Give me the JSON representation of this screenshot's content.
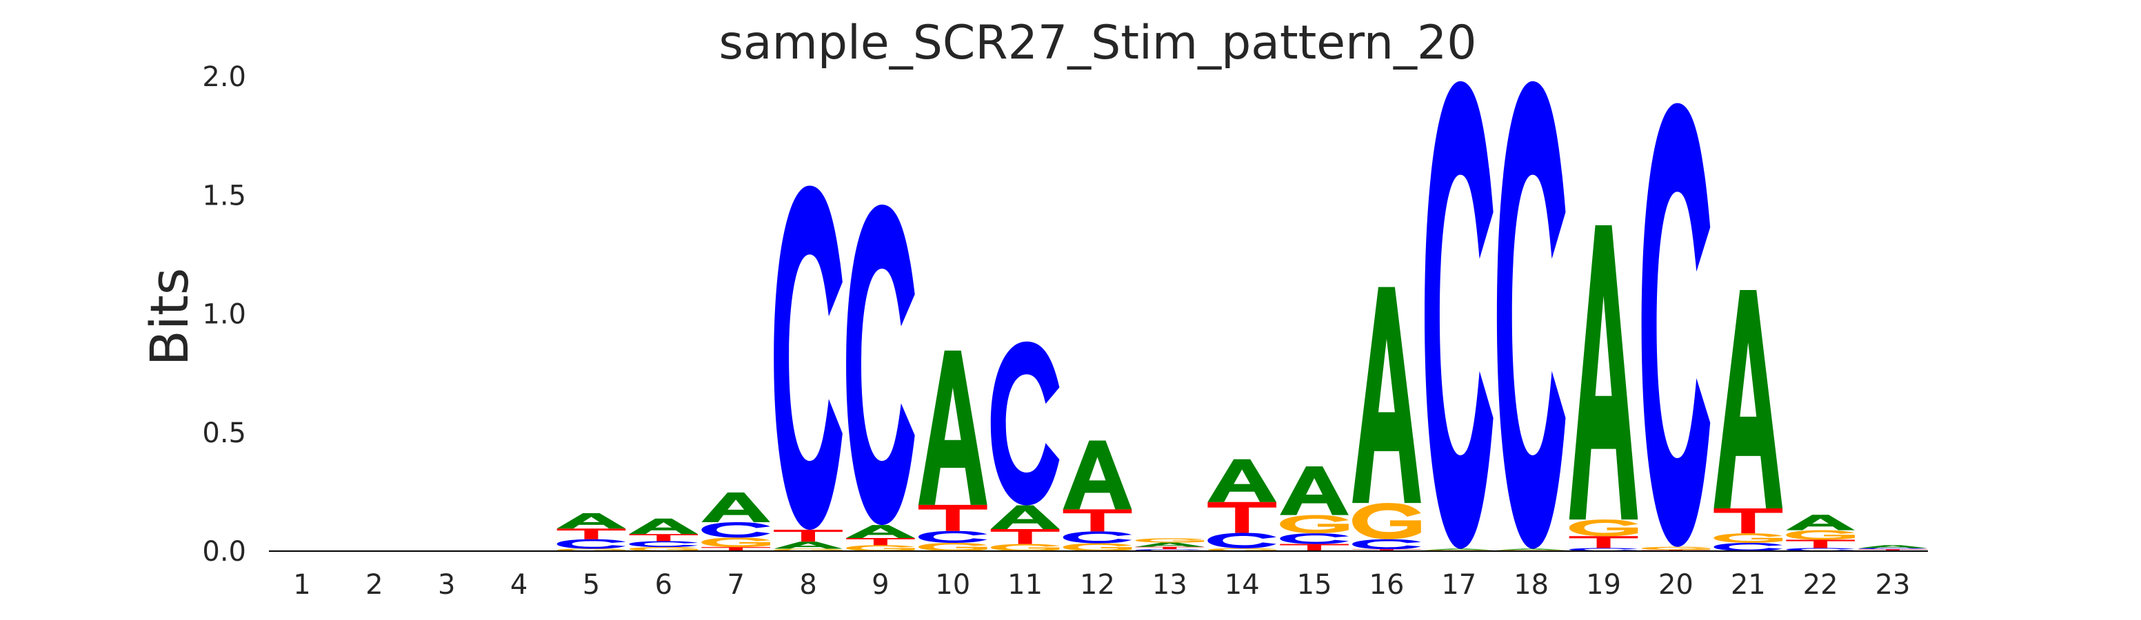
{
  "chart_data": {
    "type": "sequence-logo",
    "title": "sample_SCR27_Stim_pattern_20",
    "xlabel": "",
    "ylabel": "Bits",
    "ylim": [
      0,
      2.0
    ],
    "yticks": [
      "0.0",
      "0.5",
      "1.0",
      "1.5",
      "2.0"
    ],
    "ytick_values": [
      0,
      0.5,
      1.0,
      1.5,
      2.0
    ],
    "grid": false,
    "colors": {
      "A": "#008000",
      "C": "#0000ff",
      "G": "#ffa500",
      "T": "#ff0000"
    },
    "positions": [
      {
        "label": "1",
        "stack": []
      },
      {
        "label": "2",
        "stack": []
      },
      {
        "label": "3",
        "stack": []
      },
      {
        "label": "4",
        "stack": []
      },
      {
        "label": "5",
        "stack": [
          [
            "G",
            0.01
          ],
          [
            "C",
            0.04
          ],
          [
            "T",
            0.045
          ],
          [
            "A",
            0.065
          ]
        ]
      },
      {
        "label": "6",
        "stack": [
          [
            "G",
            0.017
          ],
          [
            "C",
            0.025
          ],
          [
            "T",
            0.03
          ],
          [
            "A",
            0.065
          ]
        ]
      },
      {
        "label": "7",
        "stack": [
          [
            "T",
            0.017
          ],
          [
            "G",
            0.04
          ],
          [
            "C",
            0.065
          ],
          [
            "A",
            0.125
          ]
        ]
      },
      {
        "label": "8",
        "stack": [
          [
            "G",
            0.01
          ],
          [
            "A",
            0.03
          ],
          [
            "T",
            0.05
          ],
          [
            "C",
            1.45
          ]
        ]
      },
      {
        "label": "9",
        "stack": [
          [
            "G",
            0.025
          ],
          [
            "T",
            0.03
          ],
          [
            "A",
            0.055
          ],
          [
            "C",
            1.35
          ]
        ]
      },
      {
        "label": "10",
        "stack": [
          [
            "G",
            0.035
          ],
          [
            "C",
            0.05
          ],
          [
            "T",
            0.11
          ],
          [
            "A",
            0.65
          ]
        ]
      },
      {
        "label": "11",
        "stack": [
          [
            "G",
            0.03
          ],
          [
            "T",
            0.063
          ],
          [
            "A",
            0.1
          ],
          [
            "C",
            0.69
          ]
        ]
      },
      {
        "label": "12",
        "stack": [
          [
            "G",
            0.033
          ],
          [
            "C",
            0.05
          ],
          [
            "T",
            0.093
          ],
          [
            "A",
            0.29
          ]
        ]
      },
      {
        "label": "13",
        "stack": [
          [
            "C",
            0.008
          ],
          [
            "T",
            0.01
          ],
          [
            "A",
            0.018
          ],
          [
            "G",
            0.018
          ]
        ]
      },
      {
        "label": "14",
        "stack": [
          [
            "G",
            0.012
          ],
          [
            "C",
            0.065
          ],
          [
            "T",
            0.13
          ],
          [
            "A",
            0.18
          ]
        ]
      },
      {
        "label": "15",
        "stack": [
          [
            "T",
            0.03
          ],
          [
            "C",
            0.045
          ],
          [
            "G",
            0.077
          ],
          [
            "A",
            0.205
          ]
        ]
      },
      {
        "label": "16",
        "stack": [
          [
            "T",
            0.008
          ],
          [
            "C",
            0.042
          ],
          [
            "G",
            0.153
          ],
          [
            "A",
            0.91
          ]
        ]
      },
      {
        "label": "17",
        "stack": [
          [
            "G",
            0.005
          ],
          [
            "A",
            0.005
          ],
          [
            "C",
            1.97
          ]
        ]
      },
      {
        "label": "18",
        "stack": [
          [
            "G",
            0.005
          ],
          [
            "A",
            0.005
          ],
          [
            "C",
            1.97
          ]
        ]
      },
      {
        "label": "19",
        "stack": [
          [
            "C",
            0.013
          ],
          [
            "T",
            0.05
          ],
          [
            "G",
            0.07
          ],
          [
            "A",
            1.24
          ]
        ]
      },
      {
        "label": "20",
        "stack": [
          [
            "T",
            0.005
          ],
          [
            "G",
            0.013
          ],
          [
            "C",
            1.87
          ]
        ]
      },
      {
        "label": "21",
        "stack": [
          [
            "C",
            0.035
          ],
          [
            "G",
            0.04
          ],
          [
            "T",
            0.105
          ],
          [
            "A",
            0.92
          ]
        ]
      },
      {
        "label": "22",
        "stack": [
          [
            "C",
            0.013
          ],
          [
            "T",
            0.035
          ],
          [
            "G",
            0.04
          ],
          [
            "A",
            0.065
          ]
        ]
      },
      {
        "label": "23",
        "stack": [
          [
            "T",
            0.008
          ],
          [
            "C",
            0.005
          ],
          [
            "A",
            0.012
          ]
        ]
      }
    ]
  }
}
